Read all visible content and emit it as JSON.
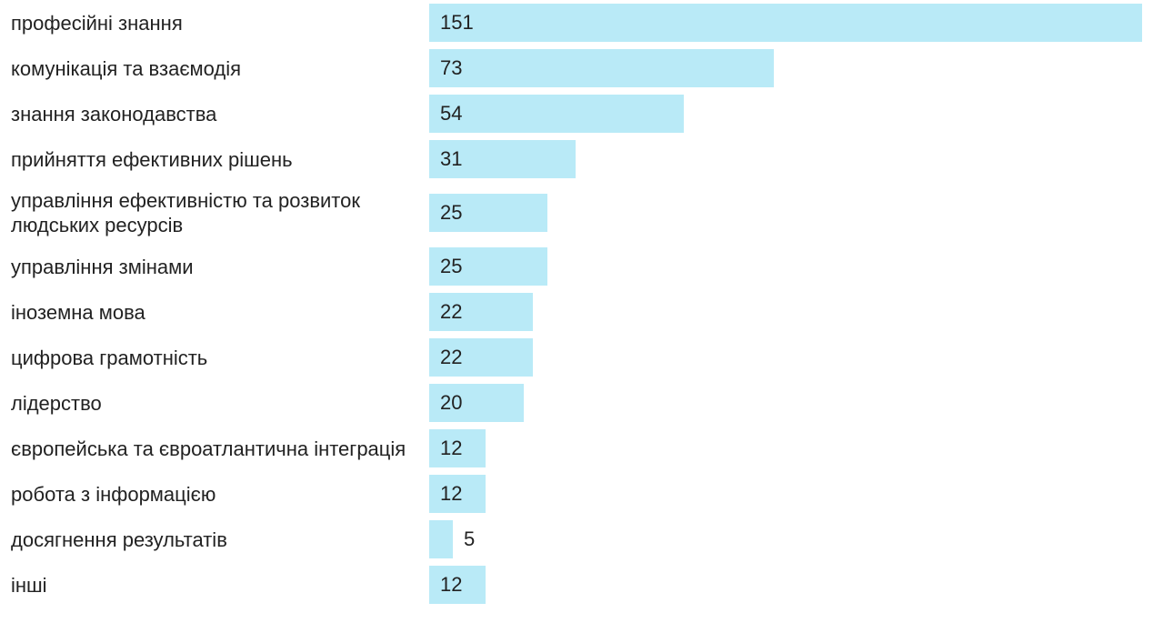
{
  "chart_data": {
    "type": "bar",
    "orientation": "horizontal",
    "color": "#b9eaf7",
    "categories": [
      "професійні знання",
      "комунікація та взаємодія",
      "знання законодавства",
      "прийняття ефективних рішень",
      "управління ефективністю та розвиток людських ресурсів",
      "управління змінами",
      "іноземна мова",
      "цифрова грамотність",
      "лідерство",
      "європейська та євроатлантична інтеграція",
      "робота з інформацією",
      "досягнення результатів",
      "інші"
    ],
    "values": [
      151,
      73,
      54,
      31,
      25,
      25,
      22,
      22,
      20,
      12,
      12,
      5,
      12
    ]
  }
}
